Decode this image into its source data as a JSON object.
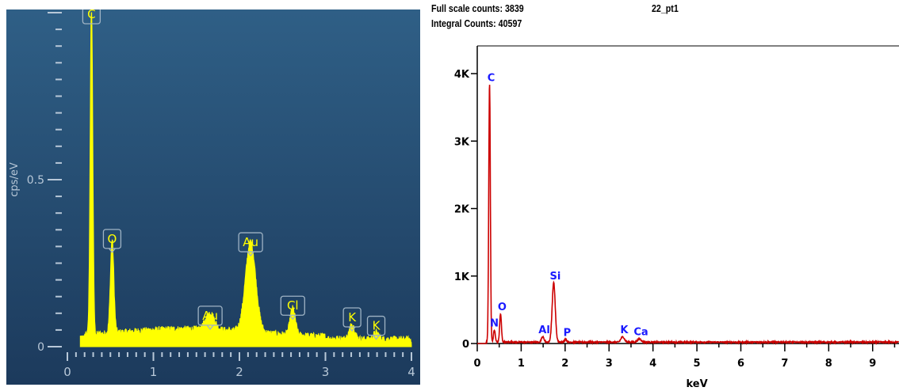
{
  "left_chart": {
    "ylabel": "cps/eV",
    "colors": {
      "background_top": "#2f5f86",
      "background_bottom": "#1c3a5c",
      "spectrum": "#ffff00",
      "axis_text": "#b8c8d8",
      "tag_border": "#9fb3c4"
    }
  },
  "right_chart": {
    "header": {
      "full_scale": "Full scale counts: 3839",
      "sample": "22_pt1",
      "integral": "Integral Counts: 40597"
    },
    "colors": {
      "spectrum": "#cc0000",
      "label": "#1a1aff",
      "axis": "#000000"
    }
  },
  "chart_data": [
    {
      "type": "line",
      "title": "",
      "xlabel": "",
      "ylabel": "cps/eV",
      "xlim": [
        0,
        4.0
      ],
      "ylim": [
        0,
        1.0
      ],
      "x_ticks": [
        "0",
        "1",
        "2",
        "3",
        "4"
      ],
      "y_ticks": [
        "0",
        "0.5"
      ],
      "grid": false,
      "baseline": 0.01,
      "peaks": [
        {
          "label": "C",
          "x": 0.28,
          "y": 1.0,
          "width": 0.015
        },
        {
          "label": "O",
          "x": 0.52,
          "y": 0.28,
          "width": 0.02
        },
        {
          "label": "Au",
          "x": 1.66,
          "y": 0.05,
          "width": 0.05
        },
        {
          "label": "Au",
          "x": 2.13,
          "y": 0.27,
          "width": 0.06
        },
        {
          "label": "Cl",
          "x": 2.62,
          "y": 0.08,
          "width": 0.03
        },
        {
          "label": "K",
          "x": 3.31,
          "y": 0.045,
          "width": 0.03
        },
        {
          "label": "K",
          "x": 3.59,
          "y": 0.02,
          "width": 0.03
        }
      ]
    },
    {
      "type": "line",
      "title": "22_pt1",
      "xlabel": "keV",
      "ylabel": "",
      "xlim": [
        0,
        9.6
      ],
      "ylim": [
        0,
        4000
      ],
      "x_ticks": [
        "0",
        "1",
        "2",
        "3",
        "4",
        "5",
        "6",
        "7",
        "8",
        "9"
      ],
      "y_ticks": [
        "0",
        "1K",
        "2K",
        "3K",
        "4K"
      ],
      "grid": false,
      "baseline": 20,
      "peaks": [
        {
          "label": "C",
          "x": 0.28,
          "y": 3839,
          "width": 0.018
        },
        {
          "label": "N",
          "x": 0.39,
          "y": 180,
          "width": 0.02
        },
        {
          "label": "O",
          "x": 0.53,
          "y": 420,
          "width": 0.02
        },
        {
          "label": "Al",
          "x": 1.49,
          "y": 80,
          "width": 0.03
        },
        {
          "label": "Si",
          "x": 1.74,
          "y": 880,
          "width": 0.035
        },
        {
          "label": "P",
          "x": 2.01,
          "y": 40,
          "width": 0.03
        },
        {
          "label": "K",
          "x": 3.31,
          "y": 80,
          "width": 0.04
        },
        {
          "label": "Ca",
          "x": 3.69,
          "y": 50,
          "width": 0.04
        }
      ]
    }
  ]
}
